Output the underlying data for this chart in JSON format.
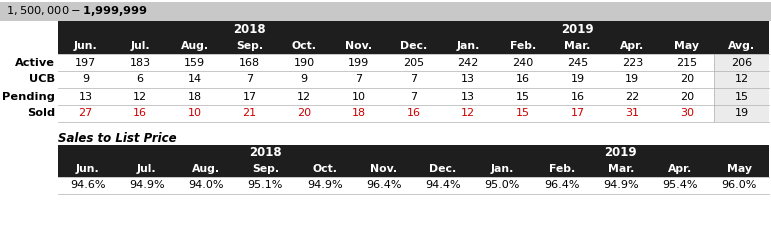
{
  "title": "$1,500,000 - $1,999,999",
  "title_bg": "#c8c8c8",
  "header_bg": "#1e1e1e",
  "avg_col_bg": "#ebebeb",
  "sold_row_color": "#cc0000",
  "normal_text": "#000000",
  "white": "#ffffff",
  "months": [
    "Jun.",
    "Jul.",
    "Aug.",
    "Sep.",
    "Oct.",
    "Nov.",
    "Dec.",
    "Jan.",
    "Feb.",
    "Mar.",
    "Apr.",
    "May",
    "Avg."
  ],
  "months_slp": [
    "Jun.",
    "Jul.",
    "Aug.",
    "Sep.",
    "Oct.",
    "Nov.",
    "Dec.",
    "Jan.",
    "Feb.",
    "Mar.",
    "Apr.",
    "May"
  ],
  "row_labels": [
    "Active",
    "UCB",
    "Pending",
    "Sold"
  ],
  "data": {
    "Active": [
      197,
      183,
      159,
      168,
      190,
      199,
      205,
      242,
      240,
      245,
      223,
      215,
      206
    ],
    "UCB": [
      9,
      6,
      14,
      7,
      9,
      7,
      7,
      13,
      16,
      19,
      19,
      20,
      12
    ],
    "Pending": [
      13,
      12,
      18,
      17,
      12,
      10,
      7,
      13,
      15,
      16,
      22,
      20,
      15
    ],
    "Sold": [
      27,
      16,
      10,
      21,
      20,
      18,
      16,
      12,
      15,
      17,
      31,
      30,
      19
    ]
  },
  "slp_data": [
    "94.6%",
    "94.9%",
    "94.0%",
    "95.1%",
    "94.9%",
    "96.4%",
    "94.4%",
    "95.0%",
    "96.4%",
    "94.9%",
    "95.4%",
    "96.0%"
  ],
  "slp_label": "Sales to List Price"
}
